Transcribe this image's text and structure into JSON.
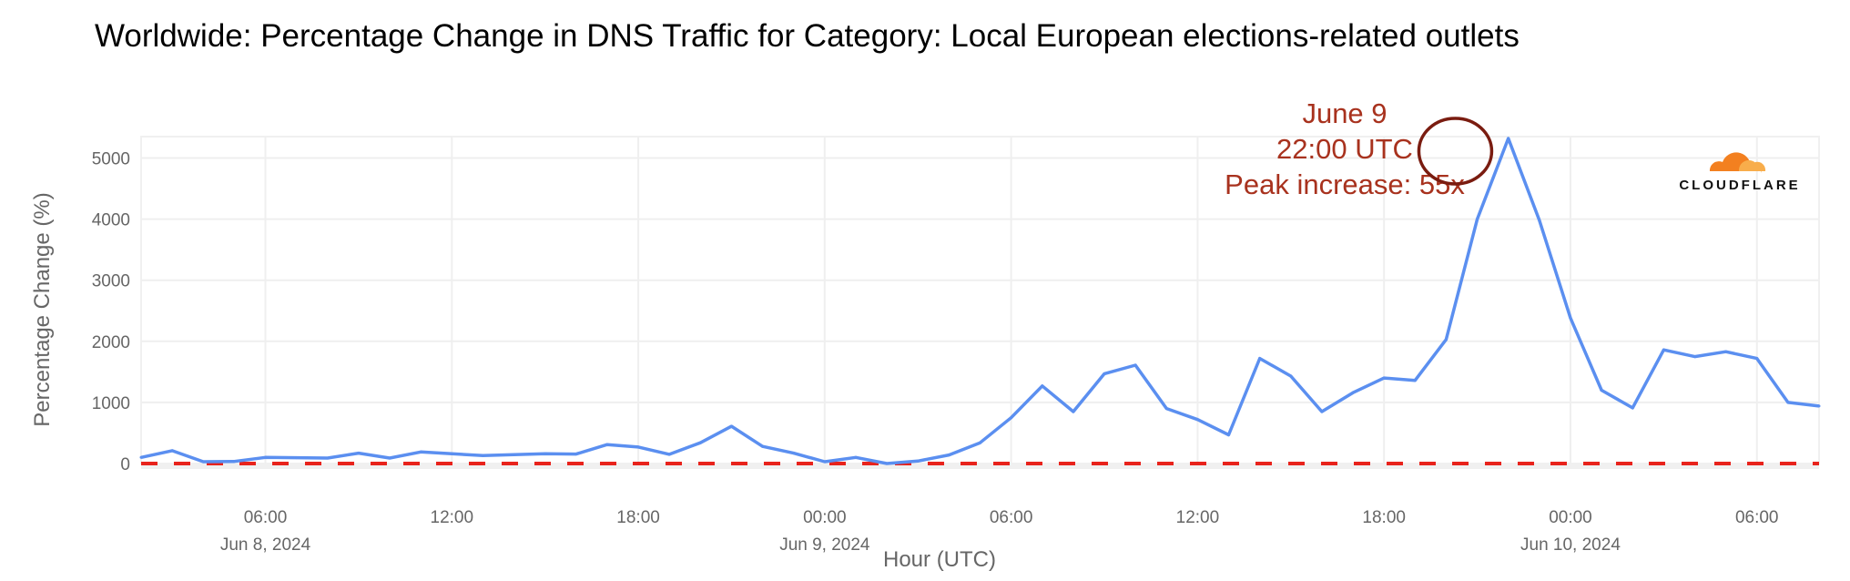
{
  "chart_data": {
    "type": "line",
    "title": "Worldwide: Percentage Change in DNS Traffic for Category: Local European elections-related outlets",
    "xlabel": "Hour (UTC)",
    "ylabel": "Percentage Change (%)",
    "ylim": [
      0,
      5350
    ],
    "y_ticks": [
      0,
      1000,
      2000,
      3000,
      4000,
      5000
    ],
    "y_tick_labels": [
      "0",
      "1000",
      "2000",
      "3000",
      "4000",
      "5000"
    ],
    "x_start_hour": 2,
    "x_end_hour": 56,
    "x_ticks": [
      {
        "hour": 6,
        "label": "06:00",
        "date": "Jun 8, 2024"
      },
      {
        "hour": 12,
        "label": "12:00",
        "date": ""
      },
      {
        "hour": 18,
        "label": "18:00",
        "date": ""
      },
      {
        "hour": 24,
        "label": "00:00",
        "date": "Jun 9, 2024"
      },
      {
        "hour": 30,
        "label": "06:00",
        "date": ""
      },
      {
        "hour": 36,
        "label": "12:00",
        "date": ""
      },
      {
        "hour": 42,
        "label": "18:00",
        "date": ""
      },
      {
        "hour": 48,
        "label": "00:00",
        "date": "Jun 10, 2024"
      },
      {
        "hour": 54,
        "label": "06:00",
        "date": ""
      }
    ],
    "grid": true,
    "series": [
      {
        "name": "Percentage Change",
        "color": "#5b8ff0",
        "values": [
          100,
          210,
          30,
          35,
          100,
          95,
          90,
          170,
          90,
          190,
          160,
          130,
          145,
          160,
          155,
          310,
          270,
          150,
          340,
          610,
          280,
          170,
          30,
          100,
          0,
          40,
          140,
          340,
          750,
          1270,
          850,
          1470,
          1610,
          900,
          720,
          470,
          1720,
          1430,
          850,
          1160,
          1400,
          1360,
          2030,
          4000,
          5320,
          3980,
          2380,
          1200,
          910,
          1860,
          1750,
          1830,
          1720,
          1000,
          940
        ]
      }
    ],
    "baseline": {
      "value": 0,
      "color": "#e8231c",
      "style": "dashed"
    },
    "annotation": {
      "lines": [
        "June 9",
        "22:00 UTC",
        "Peak increase: 55x"
      ],
      "hour": 44,
      "value": 5320,
      "color": "#a8321e",
      "circle_color": "#7a1c10"
    },
    "logo": {
      "text": "CLOUDFLARE",
      "color": "#f38020"
    }
  }
}
